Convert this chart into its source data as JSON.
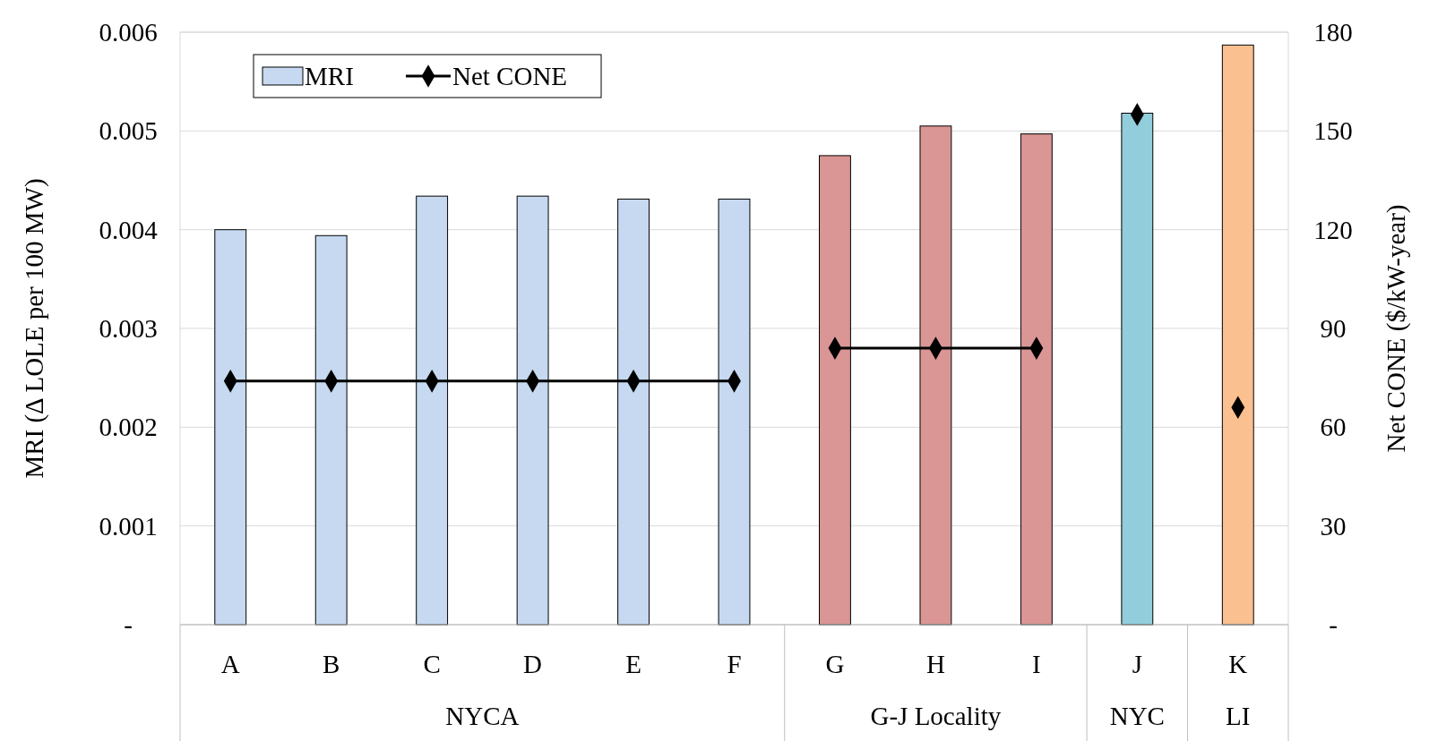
{
  "chart_data": {
    "type": "bar",
    "ylabel": "MRI (Δ LOLE per 100 MW)",
    "y2label": "Net CONE ($/kW-year)",
    "categories": [
      "A",
      "B",
      "C",
      "D",
      "E",
      "F",
      "G",
      "H",
      "I",
      "J",
      "K"
    ],
    "series": [
      {
        "name": "MRI",
        "color": "#c6d9f1",
        "colors": [
          "#c6d9f1",
          "#c6d9f1",
          "#c6d9f1",
          "#c6d9f1",
          "#c6d9f1",
          "#c6d9f1",
          "#d99694",
          "#d99694",
          "#d99694",
          "#92cddc",
          "#fac090"
        ],
        "values": [
          0.004,
          0.00394,
          0.00434,
          0.00434,
          0.00431,
          0.00431,
          0.00475,
          0.00505,
          0.00497,
          0.00518,
          0.00587
        ]
      },
      {
        "name": "Net CONE",
        "type": "line",
        "axis": "y2",
        "color": "#000000",
        "values": [
          74,
          74,
          74,
          74,
          74,
          74,
          null,
          null,
          null,
          null,
          null
        ]
      },
      {
        "type": "line",
        "axis": "y2",
        "color": "#000000",
        "values": [
          null,
          null,
          null,
          null,
          null,
          null,
          84,
          84,
          84,
          null,
          null
        ]
      },
      {
        "type": "line",
        "axis": "y2",
        "color": "#000000",
        "values": [
          null,
          null,
          null,
          null,
          null,
          null,
          null,
          null,
          null,
          155,
          null
        ]
      },
      {
        "type": "line",
        "axis": "y2",
        "color": "#000000",
        "values": [
          null,
          null,
          null,
          null,
          null,
          null,
          null,
          null,
          null,
          null,
          66
        ]
      }
    ],
    "ylim": [
      0,
      0.006
    ],
    "yticks": [
      {
        "value": 0,
        "label": "-"
      },
      0.001,
      0.002,
      0.003,
      0.004,
      0.005,
      0.006
    ],
    "y2lim": [
      0,
      180
    ],
    "y2ticks": [
      {
        "value": 0,
        "label": "-"
      },
      30,
      60,
      90,
      120,
      150,
      180
    ],
    "annotations": [
      "NYCA",
      "G-J Locality",
      "NYC",
      "LI"
    ],
    "grid": "y",
    "legend": "top left",
    "marker": "diamond",
    "line_style": "solid"
  }
}
